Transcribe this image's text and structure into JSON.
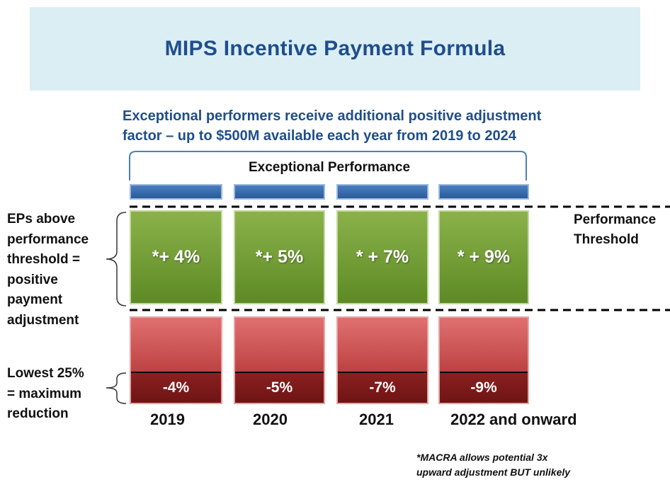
{
  "title": "MIPS Incentive Payment Formula",
  "subtitle_line1": "Exceptional performers receive additional positive adjustment",
  "subtitle_line2": "factor – up to $500M available each year from 2019 to 2024",
  "exceptional_label": "Exceptional Performance",
  "threshold_label_line1": "Performance",
  "threshold_label_line2": "Threshold",
  "left_label_top": [
    "EPs above",
    "performance",
    "threshold =",
    "positive",
    "payment",
    "adjustment"
  ],
  "left_label_bottom": [
    "Lowest 25%",
    "= maximum",
    "reduction"
  ],
  "columns": [
    {
      "year": "2019",
      "positive": "*+ 4%",
      "negative": "-4%"
    },
    {
      "year": "2020",
      "positive": "*+ 5%",
      "negative": "-5%"
    },
    {
      "year": "2021",
      "positive": "* + 7%",
      "negative": "-7%"
    },
    {
      "year": "2022 and onward",
      "positive": "* + 9%",
      "negative": "-9%"
    }
  ],
  "footnote_line1": "*MACRA allows potential 3x",
  "footnote_line2": "upward adjustment BUT unlikely",
  "colors": {
    "title": "#1f4e8c",
    "banner": "#dbeef4",
    "green": "#6f9a33",
    "red": "#c24848",
    "blue": "#2a5a99"
  }
}
